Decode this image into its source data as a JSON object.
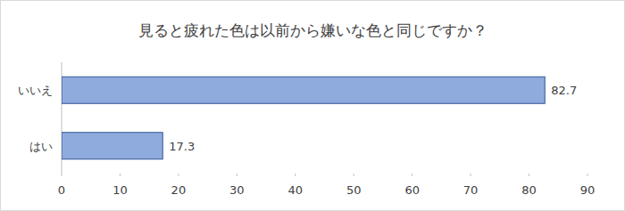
{
  "chart_data": {
    "type": "bar",
    "title": "見ると疲れた色は以前から嫌いな色と同じですか？",
    "orientation": "horizontal",
    "categories": [
      "いいえ",
      "はい"
    ],
    "values": [
      82.7,
      17.3
    ],
    "color": "#8faadc",
    "xlim": [
      0,
      90
    ],
    "xticks": [
      0,
      10,
      20,
      30,
      40,
      50,
      60,
      70,
      80,
      90
    ],
    "grid": false,
    "data_labels": true
  }
}
